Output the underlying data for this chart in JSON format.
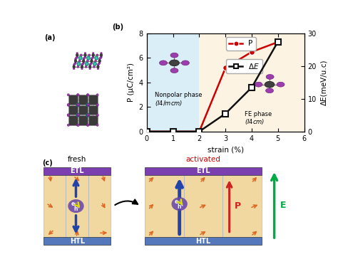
{
  "panel_b": {
    "strain": [
      0,
      1,
      2,
      3,
      4,
      5
    ],
    "P": [
      0,
      0,
      0,
      5.2,
      6.5,
      7.3
    ],
    "deltaE": [
      0,
      0,
      0,
      5.5,
      13.5,
      27.5
    ],
    "P_color": "#cc0000",
    "deltaE_color": "#111111",
    "bg_nonpolar": "#daeef7",
    "bg_fe": "#fdf3e3",
    "xlabel": "strain (%)",
    "ylabel_left": "P (μC/cm²)",
    "ylabel_right": "ΔE(meV/u.c)",
    "ylim_left": [
      0,
      8
    ],
    "ylim_right": [
      0,
      30
    ],
    "xlim": [
      0,
      6
    ],
    "transition_strain": 2,
    "y_ticks_left": [
      0,
      2,
      4,
      6,
      8
    ],
    "y_ticks_right": [
      0,
      10,
      20,
      30
    ],
    "x_ticks": [
      0,
      1,
      2,
      3,
      4,
      5,
      6
    ]
  },
  "colors": {
    "purple": "#9b3dab",
    "green": "#3dbfaa",
    "darkgray": "#404040",
    "etl_color": "#7b3fb0",
    "htl_color": "#5577bb",
    "perov_color": "#f0d8a0",
    "arrow_orange": "#dd6622",
    "arrow_blue": "#2244aa",
    "arrow_red": "#cc2222",
    "arrow_green": "#00aa44",
    "eh_purple": "#6644aa"
  }
}
